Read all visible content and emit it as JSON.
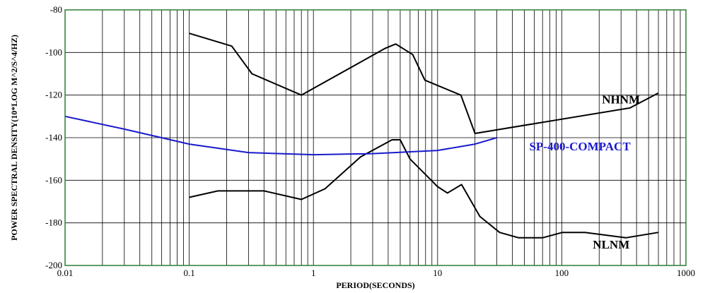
{
  "chart_data": {
    "type": "line",
    "title": "",
    "xlabel": "PERIOD(SECONDS)",
    "ylabel": "POWER SPECTRAL DENSITY(10*LOG M^2/S^4/HZ)",
    "x_scale": "log",
    "xlim": [
      0.01,
      1000
    ],
    "ylim": [
      -200,
      -80
    ],
    "x_ticks": [
      {
        "value": 0.01,
        "label": "0.01"
      },
      {
        "value": 0.1,
        "label": "0.1"
      },
      {
        "value": 1,
        "label": "1"
      },
      {
        "value": 10,
        "label": "10"
      },
      {
        "value": 100,
        "label": "100"
      },
      {
        "value": 1000,
        "label": "1000"
      }
    ],
    "y_ticks": [
      {
        "value": -80,
        "label": "-80"
      },
      {
        "value": -100,
        "label": "-100"
      },
      {
        "value": -120,
        "label": "-120"
      },
      {
        "value": -140,
        "label": "-140"
      },
      {
        "value": -160,
        "label": "-160"
      },
      {
        "value": -180,
        "label": "-180"
      },
      {
        "value": -200,
        "label": "-200"
      }
    ],
    "grid": true,
    "colors": {
      "frame": "#2e7d32",
      "grid": "#000000",
      "nhnm": "#000000",
      "nlnm": "#000000",
      "sp400": "#1a1acc"
    },
    "series": [
      {
        "name": "NHNM",
        "color": "#000000",
        "label_at": [
          300,
          -124
        ],
        "points": [
          [
            0.1,
            -91
          ],
          [
            0.22,
            -97
          ],
          [
            0.32,
            -110
          ],
          [
            0.8,
            -120
          ],
          [
            3.8,
            -98
          ],
          [
            4.6,
            -96
          ],
          [
            6.3,
            -101
          ],
          [
            7.9,
            -113
          ],
          [
            15.4,
            -120
          ],
          [
            20,
            -138
          ],
          [
            354.8,
            -126
          ],
          [
            600,
            -119
          ]
        ]
      },
      {
        "name": "NLNM",
        "color": "#000000",
        "label_at": [
          250,
          -192
        ],
        "points": [
          [
            0.1,
            -168
          ],
          [
            0.17,
            -165
          ],
          [
            0.4,
            -165
          ],
          [
            0.8,
            -169
          ],
          [
            1.24,
            -164
          ],
          [
            2.4,
            -149
          ],
          [
            4.3,
            -141
          ],
          [
            5.0,
            -141
          ],
          [
            6.0,
            -150
          ],
          [
            10,
            -163
          ],
          [
            12,
            -166
          ],
          [
            15.6,
            -162
          ],
          [
            21.9,
            -177
          ],
          [
            31.6,
            -184.5
          ],
          [
            45,
            -187
          ],
          [
            70,
            -187
          ],
          [
            101,
            -184.5
          ],
          [
            154,
            -184.5
          ],
          [
            328,
            -187
          ],
          [
            600,
            -184.5
          ]
        ]
      },
      {
        "name": "SP-400-COMPACT",
        "color": "#1a1acc",
        "label_at": [
          140,
          -146
        ],
        "points": [
          [
            0.01,
            -130
          ],
          [
            0.03,
            -136
          ],
          [
            0.1,
            -143
          ],
          [
            0.3,
            -147
          ],
          [
            1.0,
            -148
          ],
          [
            3.0,
            -147.5
          ],
          [
            10,
            -146
          ],
          [
            20,
            -143
          ],
          [
            30,
            -140
          ]
        ]
      }
    ]
  }
}
